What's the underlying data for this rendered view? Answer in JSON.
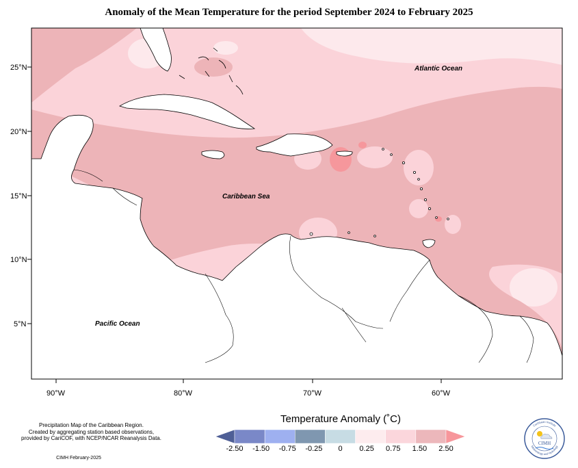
{
  "title": "Anomaly of the Mean Temperature for the period September 2024 to February 2025",
  "map": {
    "lat_labels": [
      "25°N",
      "20°N",
      "15°N",
      "10°N",
      "5°N"
    ],
    "lon_labels": [
      "90°W",
      "80°W",
      "70°W",
      "60°W"
    ],
    "ocean_labels": {
      "atlantic": "Atlantic Ocean",
      "caribbean": "Caribbean Sea",
      "pacific": "Pacific Ocean"
    },
    "colors": {
      "land": "#ffffff",
      "anomaly_0_25": "#fde9ec",
      "anomaly_0_25_to_0_75": "#fbd3d9",
      "anomaly_0_75_to_1_50": "#edb4b8",
      "anomaly_above_1_50": "#f6979c"
    }
  },
  "legend": {
    "title": "Temperature Anomaly (˚C)",
    "ticks": [
      "-2.50",
      "-1.50",
      "-0.75",
      "-0.25",
      "0",
      "0.25",
      "0.75",
      "1.50",
      "2.50"
    ],
    "colors": [
      "#4f5f96",
      "#7a88c8",
      "#9eb0f0",
      "#7f97b0",
      "#c7dce4",
      "#fdecee",
      "#fbd6dc",
      "#ecb7bb",
      "#f7969b"
    ]
  },
  "note": {
    "line1": "Precipitation Map of the Caribbean Region.",
    "line2": "Created by aggregating station based observations,",
    "line3": "provided by CariCOF, with NCEP/NCAR Reanalysis Data."
  },
  "credit": "CIMH February-2025",
  "logo": {
    "arc_text": "Caribbean Institute",
    "abbrev": "CIMH",
    "bottom_text": "Meteorology and Hydrology"
  }
}
